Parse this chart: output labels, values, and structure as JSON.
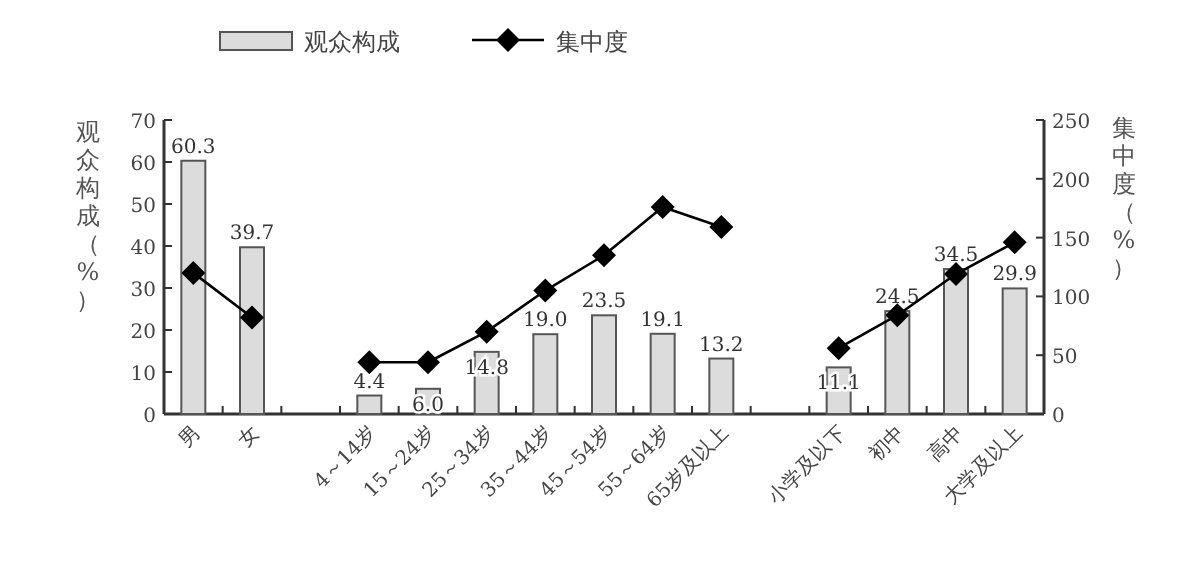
{
  "chart_data": {
    "type": "bar",
    "categories": [
      "男",
      "女",
      null,
      "4～14岁",
      "15～24岁",
      "25～34岁",
      "35～44岁",
      "45～54岁",
      "55～64岁",
      "65岁及以上",
      null,
      "小学及以下",
      "初中",
      "高中",
      "大学及以上"
    ],
    "series": [
      {
        "name": "观众构成",
        "color": "#dcdcdc",
        "values": [
          60.3,
          39.7,
          null,
          4.4,
          6.0,
          14.8,
          19.0,
          23.5,
          19.1,
          13.2,
          null,
          11.1,
          24.5,
          34.5,
          29.9
        ],
        "value_labels": [
          "60.3",
          "39.7",
          null,
          "4.4",
          "6.0",
          "14.8",
          "19.0",
          "23.5",
          "19.1",
          "13.2",
          null,
          "11.1",
          "24.5",
          "34.5",
          "29.9"
        ]
      },
      {
        "name": "集中度",
        "type": "line",
        "axis": "y2",
        "color": "#000000",
        "values": [
          120,
          82,
          null,
          44,
          44,
          70,
          105,
          135,
          176,
          159,
          null,
          56,
          84,
          119,
          146
        ]
      }
    ],
    "ylabel": "观众构成（%）",
    "y2label": "集中度（%）",
    "ylim": [
      0,
      70
    ],
    "yticks": [
      0,
      10,
      20,
      30,
      40,
      50,
      60,
      70
    ],
    "y2lim": [
      0,
      250
    ],
    "y2ticks": [
      0,
      50,
      100,
      150,
      200,
      250
    ],
    "marker": "diamond",
    "line_style": "solid",
    "legend": "top"
  }
}
